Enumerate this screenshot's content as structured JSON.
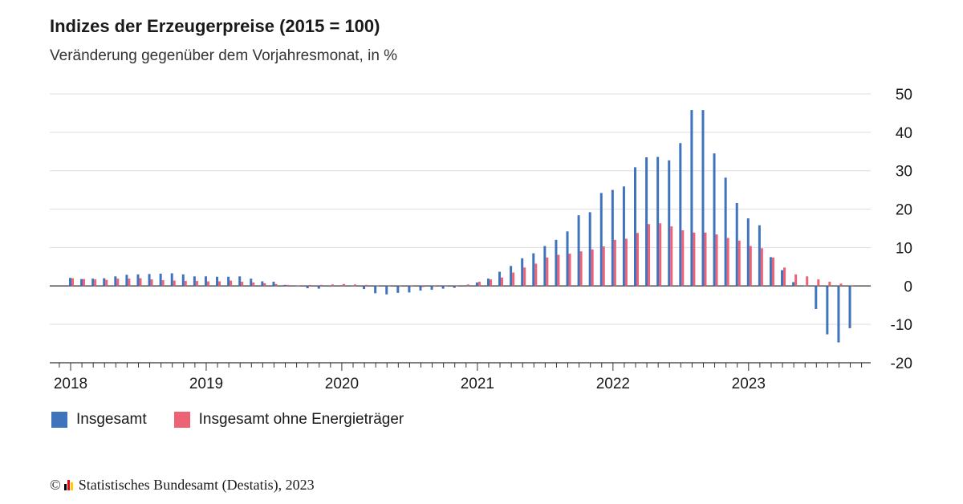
{
  "title": "Indizes der Erzeugerpreise (2015 = 100)",
  "subtitle": "Veränderung gegenüber dem Vorjahresmonat, in %",
  "footer": {
    "copyright": "©",
    "source": "Statistisches Bundesamt (Destatis), 2023",
    "logo_colors": [
      "#000000",
      "#e30613",
      "#ffcc00"
    ]
  },
  "colors": {
    "series1": "#3f74bd",
    "series2": "#ee6276",
    "grid": "#dddddd",
    "axis": "#333333"
  },
  "chart_data": {
    "type": "bar",
    "title": "Indizes der Erzeugerpreise (2015 = 100)",
    "subtitle": "Veränderung gegenüber dem Vorjahresmonat, in %",
    "xlabel": "",
    "ylabel": "",
    "ylim": [
      -20,
      50
    ],
    "yticks": [
      50,
      40,
      30,
      20,
      10,
      0,
      -10,
      -20
    ],
    "xticks": [
      "2018",
      "2019",
      "2020",
      "2021",
      "2022",
      "2023"
    ],
    "grid": true,
    "legend_position": "bottom-left",
    "categories": [
      "2018-01",
      "2018-02",
      "2018-03",
      "2018-04",
      "2018-05",
      "2018-06",
      "2018-07",
      "2018-08",
      "2018-09",
      "2018-10",
      "2018-11",
      "2018-12",
      "2019-01",
      "2019-02",
      "2019-03",
      "2019-04",
      "2019-05",
      "2019-06",
      "2019-07",
      "2019-08",
      "2019-09",
      "2019-10",
      "2019-11",
      "2019-12",
      "2020-01",
      "2020-02",
      "2020-03",
      "2020-04",
      "2020-05",
      "2020-06",
      "2020-07",
      "2020-08",
      "2020-09",
      "2020-10",
      "2020-11",
      "2020-12",
      "2021-01",
      "2021-02",
      "2021-03",
      "2021-04",
      "2021-05",
      "2021-06",
      "2021-07",
      "2021-08",
      "2021-09",
      "2021-10",
      "2021-11",
      "2021-12",
      "2022-01",
      "2022-02",
      "2022-03",
      "2022-04",
      "2022-05",
      "2022-06",
      "2022-07",
      "2022-08",
      "2022-09",
      "2022-10",
      "2022-11",
      "2022-12",
      "2023-01",
      "2023-02",
      "2023-03",
      "2023-04",
      "2023-05",
      "2023-06",
      "2023-07",
      "2023-08",
      "2023-09",
      "2023-10"
    ],
    "series": [
      {
        "name": "Insgesamt",
        "values": [
          2.1,
          1.8,
          1.9,
          2.0,
          2.5,
          2.9,
          3.0,
          3.1,
          3.2,
          3.3,
          3.0,
          2.5,
          2.5,
          2.4,
          2.4,
          2.5,
          1.9,
          1.2,
          1.1,
          0.3,
          -0.1,
          -0.6,
          -0.7,
          -0.2,
          0.2,
          -0.1,
          -0.8,
          -1.9,
          -2.2,
          -1.8,
          -1.7,
          -1.2,
          -1.0,
          -0.7,
          -0.5,
          0.2,
          0.9,
          1.9,
          3.7,
          5.2,
          7.2,
          8.5,
          10.4,
          12.0,
          14.2,
          18.4,
          19.2,
          24.2,
          25.0,
          25.9,
          30.9,
          33.5,
          33.6,
          32.7,
          37.2,
          45.8,
          45.8,
          34.5,
          28.2,
          21.6,
          17.6,
          15.8,
          7.5,
          4.1,
          1.0,
          0.1,
          -6.0,
          -12.6,
          -14.7,
          -11.0
        ]
      },
      {
        "name": "Insgesamt ohne Energieträger",
        "values": [
          2.0,
          1.8,
          1.7,
          1.6,
          1.9,
          1.9,
          2.0,
          1.7,
          1.5,
          1.4,
          1.3,
          1.3,
          1.2,
          1.2,
          1.4,
          1.1,
          0.9,
          0.7,
          0.5,
          0.3,
          0.2,
          0.3,
          0.3,
          0.4,
          0.5,
          0.4,
          0.3,
          0.1,
          -0.1,
          -0.2,
          -0.2,
          -0.3,
          -0.2,
          -0.1,
          0.0,
          0.4,
          1.1,
          1.7,
          2.2,
          3.5,
          4.8,
          5.8,
          7.4,
          8.1,
          8.4,
          9.0,
          9.5,
          10.3,
          12.0,
          12.3,
          13.8,
          16.1,
          16.3,
          15.5,
          14.5,
          13.9,
          13.9,
          13.4,
          12.5,
          11.8,
          10.4,
          9.8,
          7.4,
          4.8,
          3.0,
          2.5,
          1.7,
          1.1,
          0.6,
          0.2
        ]
      }
    ]
  }
}
